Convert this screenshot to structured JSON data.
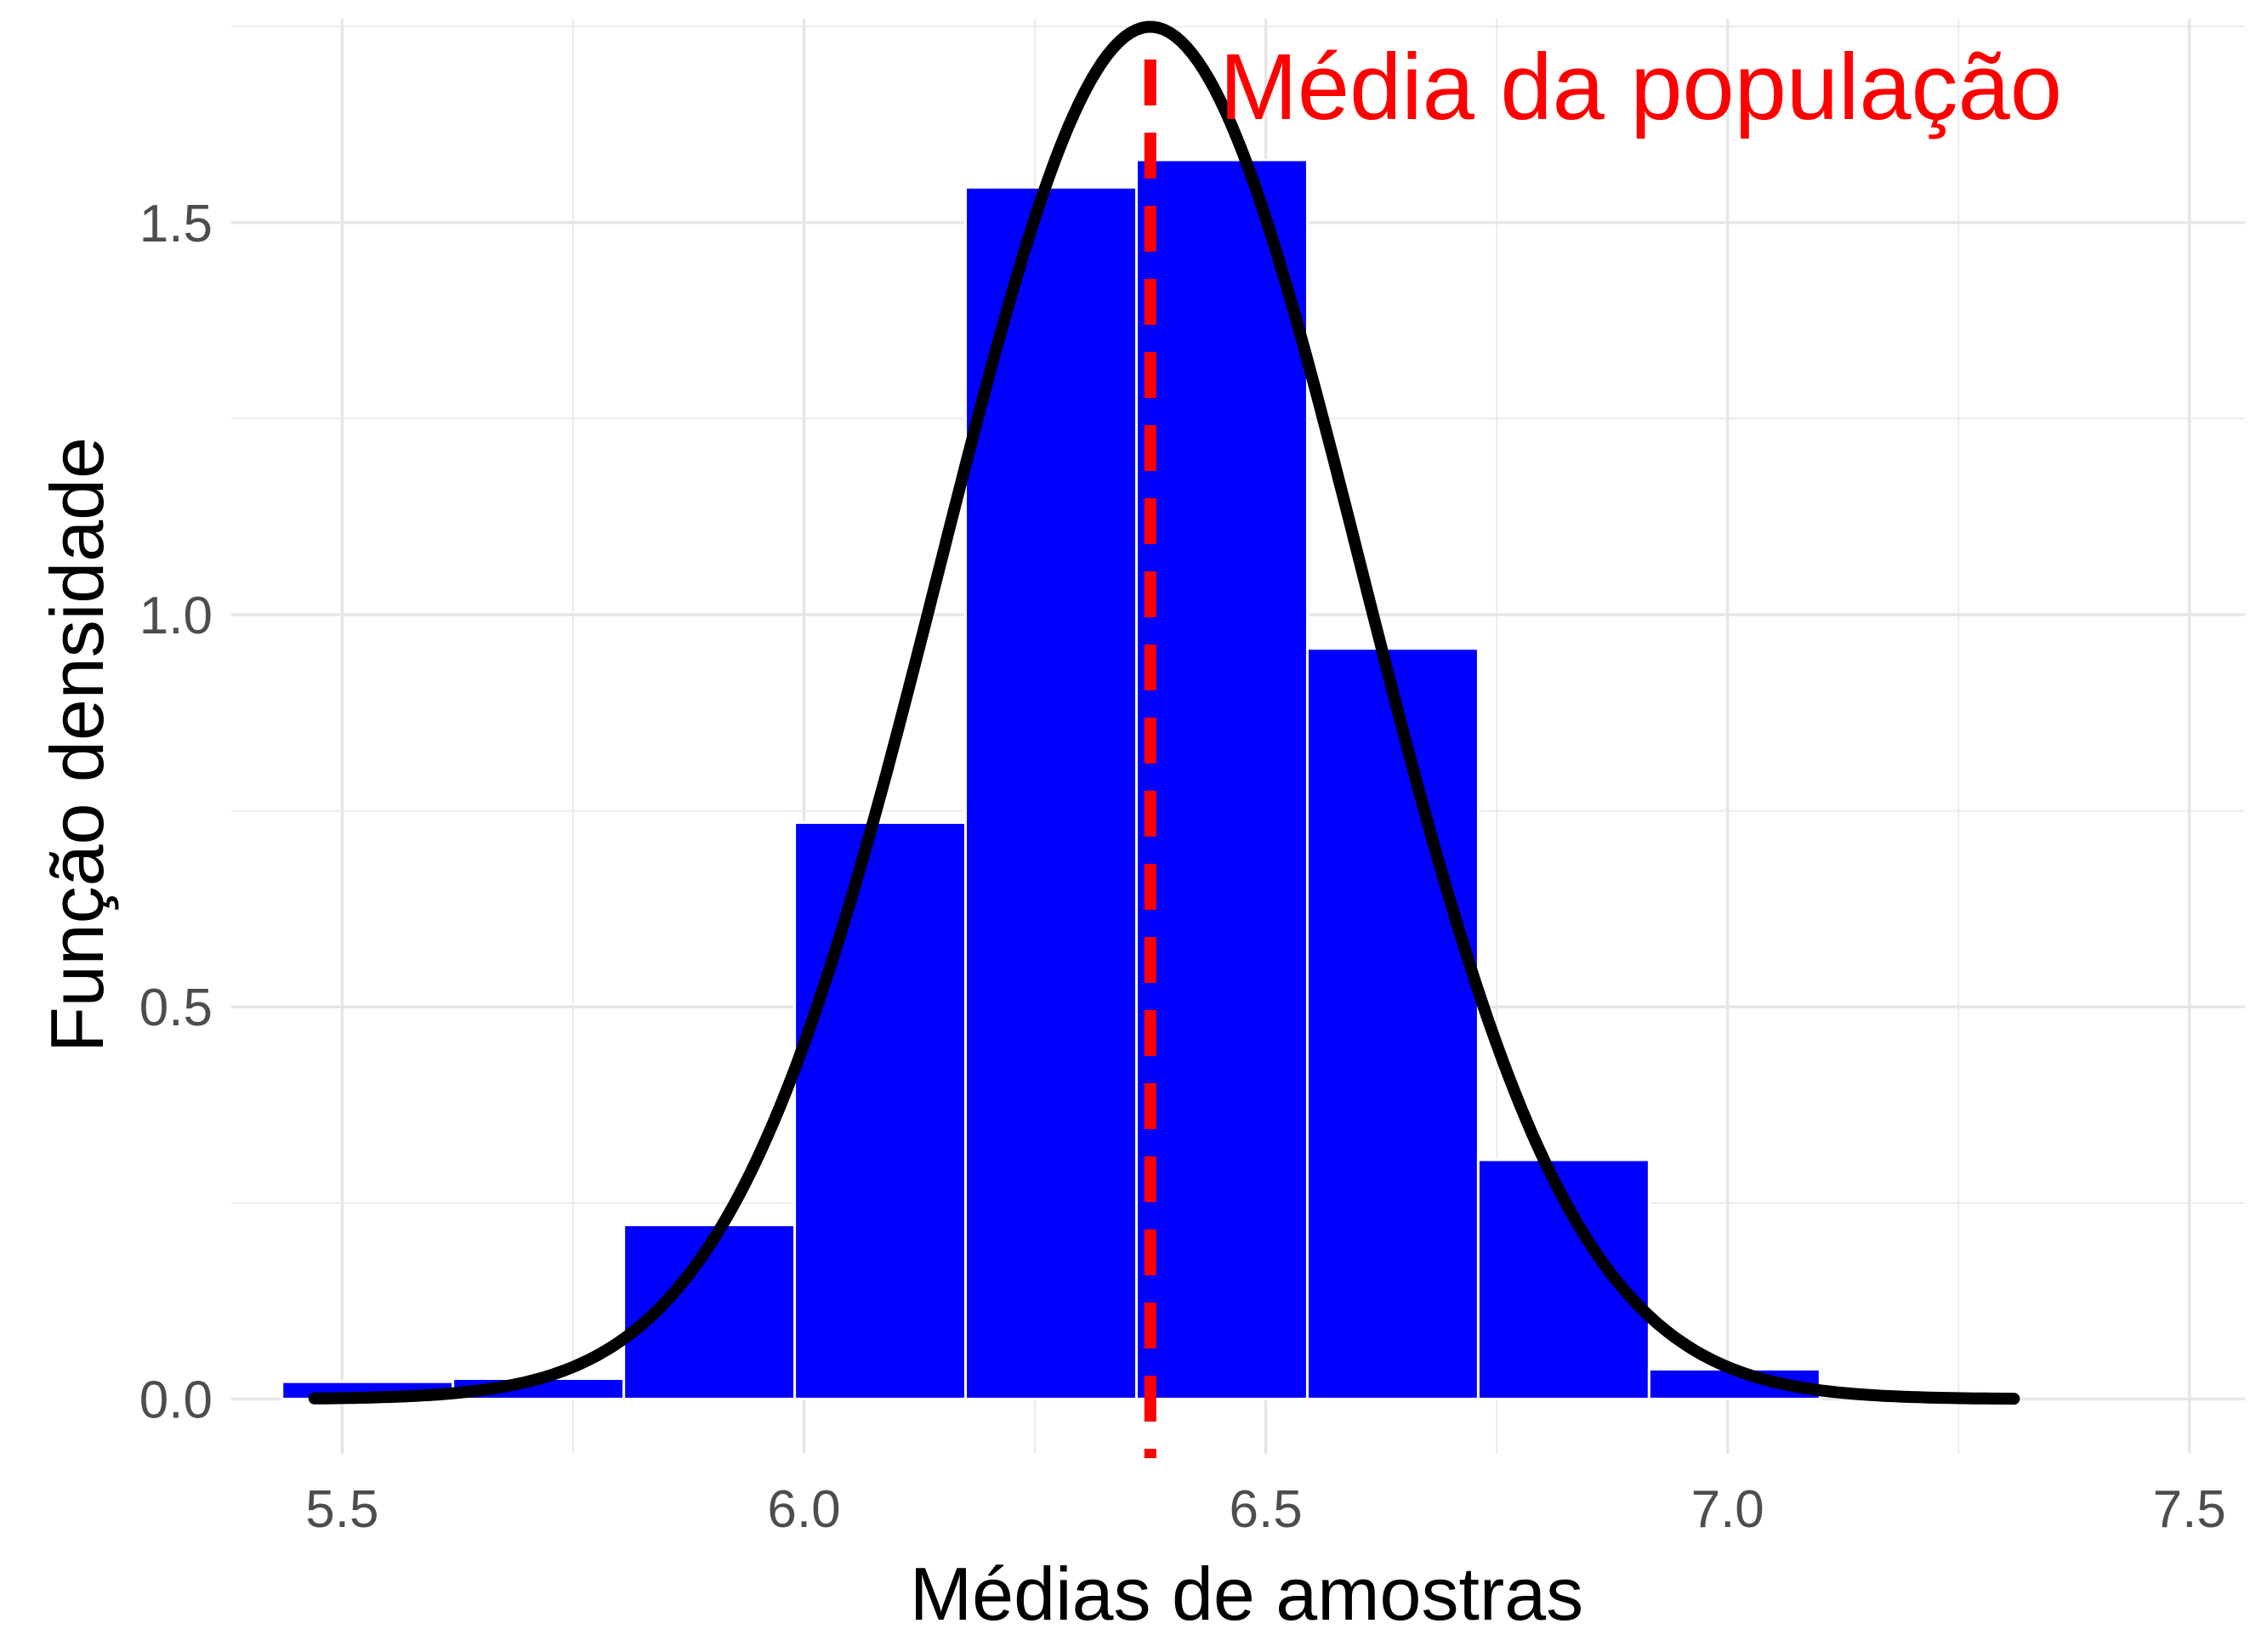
{
  "chart_data": {
    "type": "bar",
    "xlabel": "Médias de amostras",
    "ylabel": "Função densidade",
    "xlim": [
      5.38,
      7.56
    ],
    "ylim": [
      -0.07,
      1.76
    ],
    "x_ticks": [
      5.5,
      6.0,
      6.5,
      7.0,
      7.5
    ],
    "x_tick_labels": [
      "5.5",
      "6.0",
      "6.5",
      "7.0",
      "7.5"
    ],
    "y_ticks": [
      0.0,
      0.5,
      1.0,
      1.5
    ],
    "y_tick_labels": [
      "0.0",
      "0.5",
      "1.0",
      "1.5"
    ],
    "grid": true,
    "bar_color": "#0000ff",
    "bins": [
      {
        "x0": 5.435,
        "x1": 5.62,
        "density": 0.022
      },
      {
        "x0": 5.62,
        "x1": 5.805,
        "density": 0.026
      },
      {
        "x0": 5.805,
        "x1": 5.99,
        "density": 0.222
      },
      {
        "x0": 5.99,
        "x1": 6.175,
        "density": 0.735
      },
      {
        "x0": 6.175,
        "x1": 6.36,
        "density": 1.545
      },
      {
        "x0": 6.36,
        "x1": 6.545,
        "density": 1.58
      },
      {
        "x0": 6.545,
        "x1": 6.73,
        "density": 0.957
      },
      {
        "x0": 6.73,
        "x1": 6.915,
        "density": 0.305
      },
      {
        "x0": 6.915,
        "x1": 7.1,
        "density": 0.038
      }
    ],
    "curve": {
      "type": "normal",
      "mean": 6.375,
      "sd": 0.228,
      "x_range": [
        5.47,
        7.31
      ],
      "color": "#000000"
    },
    "vline": {
      "x": 6.375,
      "color": "#ff0000",
      "style": "dashed"
    },
    "annotation": {
      "text": "Média da população",
      "color": "#ff0000",
      "x": 6.45,
      "y": 1.73
    }
  }
}
